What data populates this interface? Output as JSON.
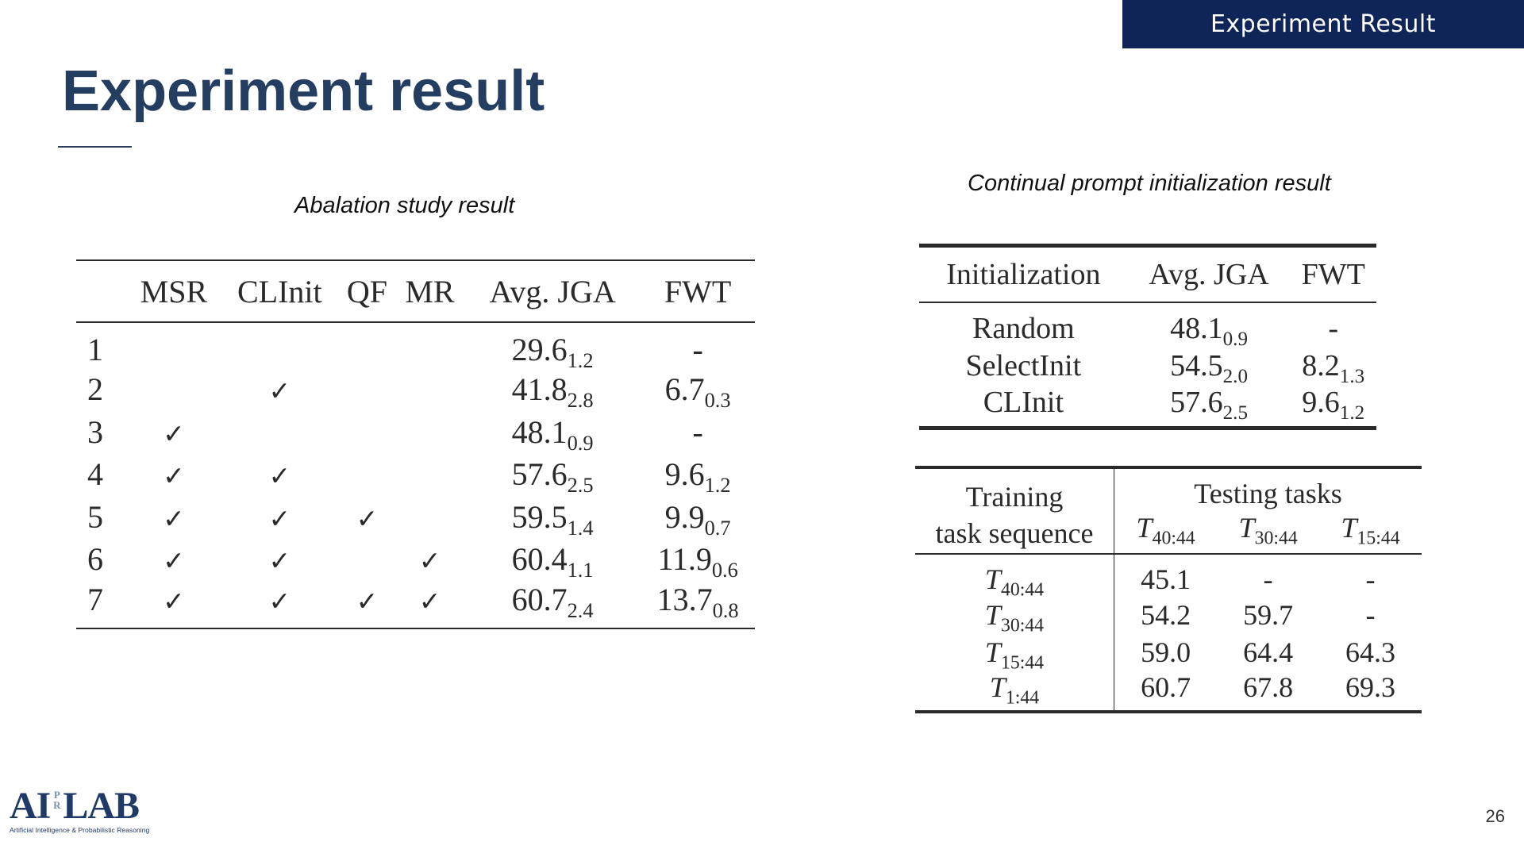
{
  "header": {
    "section_label": "Experiment Result",
    "color": "#0f2557"
  },
  "title": "Experiment result",
  "ablation": {
    "caption": "Abalation study result",
    "columns": [
      "",
      "MSR",
      "CLInit",
      "QF",
      "MR",
      "Avg. JGA",
      "FWT"
    ],
    "check_symbol": "✓",
    "rows": [
      {
        "id": "1",
        "msr": "",
        "clinit": "",
        "qf": "",
        "mr": "",
        "jga": "29.6",
        "jga_std": "1.2",
        "fwt": "-",
        "fwt_std": ""
      },
      {
        "id": "2",
        "msr": "",
        "clinit": "✓",
        "qf": "",
        "mr": "",
        "jga": "41.8",
        "jga_std": "2.8",
        "fwt": "6.7",
        "fwt_std": "0.3"
      },
      {
        "id": "3",
        "msr": "✓",
        "clinit": "",
        "qf": "",
        "mr": "",
        "jga": "48.1",
        "jga_std": "0.9",
        "fwt": "-",
        "fwt_std": ""
      },
      {
        "id": "4",
        "msr": "✓",
        "clinit": "✓",
        "qf": "",
        "mr": "",
        "jga": "57.6",
        "jga_std": "2.5",
        "fwt": "9.6",
        "fwt_std": "1.2"
      },
      {
        "id": "5",
        "msr": "✓",
        "clinit": "✓",
        "qf": "✓",
        "mr": "",
        "jga": "59.5",
        "jga_std": "1.4",
        "fwt": "9.9",
        "fwt_std": "0.7"
      },
      {
        "id": "6",
        "msr": "✓",
        "clinit": "✓",
        "qf": "",
        "mr": "✓",
        "jga": "60.4",
        "jga_std": "1.1",
        "fwt": "11.9",
        "fwt_std": "0.6"
      },
      {
        "id": "7",
        "msr": "✓",
        "clinit": "✓",
        "qf": "✓",
        "mr": "✓",
        "jga": "60.7",
        "jga_std": "2.4",
        "fwt": "13.7",
        "fwt_std": "0.8"
      }
    ]
  },
  "init": {
    "caption": "Continual prompt initialization result",
    "columns": [
      "Initialization",
      "Avg. JGA",
      "FWT"
    ],
    "rows": [
      {
        "name": "Random",
        "jga": "48.1",
        "jga_std": "0.9",
        "fwt": "-",
        "fwt_std": ""
      },
      {
        "name": "SelectInit",
        "jga": "54.5",
        "jga_std": "2.0",
        "fwt": "8.2",
        "fwt_std": "1.3"
      },
      {
        "name": "CLInit",
        "jga": "57.6",
        "jga_std": "2.5",
        "fwt": "9.6",
        "fwt_std": "1.2"
      }
    ]
  },
  "transfer": {
    "train_header_line1": "Training",
    "train_header_line2": "task sequence",
    "test_header": "Testing tasks",
    "symbol": "T",
    "test_columns": [
      "40:44",
      "30:44",
      "15:44"
    ],
    "rows": [
      {
        "train": "40:44",
        "values": [
          "45.1",
          "-",
          "-"
        ]
      },
      {
        "train": "30:44",
        "values": [
          "54.2",
          "59.7",
          "-"
        ]
      },
      {
        "train": "15:44",
        "values": [
          "59.0",
          "64.4",
          "64.3"
        ]
      },
      {
        "train": "1:44",
        "values": [
          "60.7",
          "67.8",
          "69.3"
        ]
      }
    ]
  },
  "logo": {
    "part1": "AI",
    "pr_top": "P",
    "pr_bottom": "R",
    "part2": "LAB",
    "subtitle": "Artificial Intelligence & Probabilistic Reasoning"
  },
  "page_number": "26"
}
